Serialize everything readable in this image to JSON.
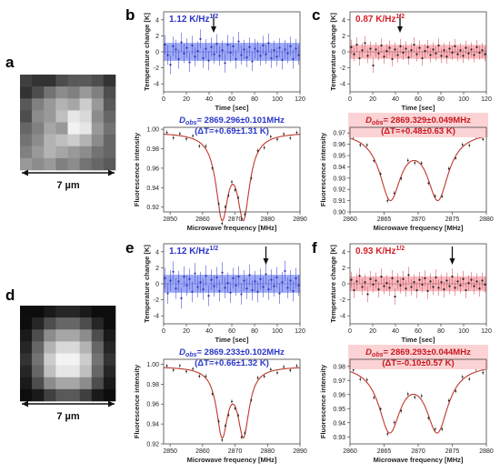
{
  "panel_labels": [
    "a",
    "b",
    "c",
    "d",
    "e",
    "f"
  ],
  "scale_label": "7 µm",
  "images": [
    {
      "name": "fluorescence-image-a",
      "grid": [
        [
          0.25,
          0.2,
          0.2,
          0.3,
          0.35,
          0.35,
          0.3,
          0.2
        ],
        [
          0.2,
          0.3,
          0.45,
          0.55,
          0.5,
          0.6,
          0.5,
          0.3
        ],
        [
          0.35,
          0.5,
          0.6,
          0.7,
          0.65,
          0.8,
          0.6,
          0.35
        ],
        [
          0.3,
          0.55,
          0.6,
          0.75,
          0.9,
          0.85,
          0.55,
          0.4
        ],
        [
          0.4,
          0.5,
          0.65,
          0.6,
          0.95,
          0.9,
          0.6,
          0.45
        ],
        [
          0.45,
          0.55,
          0.7,
          0.75,
          0.8,
          0.7,
          0.55,
          0.4
        ],
        [
          0.5,
          0.6,
          0.7,
          0.65,
          0.6,
          0.55,
          0.45,
          0.4
        ],
        [
          0.6,
          0.55,
          0.6,
          0.5,
          0.55,
          0.45,
          0.4,
          0.35
        ]
      ]
    },
    {
      "name": "fluorescence-image-d",
      "grid": [
        [
          0.05,
          0.05,
          0.1,
          0.15,
          0.15,
          0.1,
          0.05,
          0.05
        ],
        [
          0.05,
          0.15,
          0.3,
          0.4,
          0.4,
          0.3,
          0.15,
          0.05
        ],
        [
          0.1,
          0.3,
          0.55,
          0.65,
          0.65,
          0.55,
          0.3,
          0.1
        ],
        [
          0.15,
          0.4,
          0.7,
          0.85,
          0.85,
          0.7,
          0.4,
          0.15
        ],
        [
          0.2,
          0.45,
          0.8,
          0.95,
          0.95,
          0.8,
          0.45,
          0.2
        ],
        [
          0.15,
          0.4,
          0.75,
          0.9,
          0.9,
          0.75,
          0.4,
          0.15
        ],
        [
          0.1,
          0.3,
          0.55,
          0.65,
          0.65,
          0.55,
          0.3,
          0.1
        ],
        [
          0.05,
          0.1,
          0.25,
          0.35,
          0.35,
          0.25,
          0.1,
          0.05
        ]
      ]
    }
  ],
  "chart_data": [
    {
      "id": "b",
      "type": "scatter",
      "ylabel": "Temperature change [K]",
      "xlabel": "Time [sec]",
      "noise_label": "1.12 K/Hz",
      "noise_sup": "1/2",
      "xlim": [
        0,
        120
      ],
      "ylim": [
        -5,
        5
      ],
      "xticks": [
        0,
        20,
        40,
        60,
        80,
        100,
        120
      ],
      "yticks": [
        -4,
        -2,
        0,
        2,
        4
      ],
      "band": [
        -1.12,
        1.12
      ],
      "arrow_x": 44,
      "dot_color": "#2a36b8",
      "band_color": "#7f8df0",
      "err_color": "#4a58d8",
      "noise_color": "#2a36c8",
      "values": [
        0.9,
        -0.4,
        -1.6,
        0.7,
        0.3,
        -0.9,
        1.2,
        -0.2,
        0.5,
        -1.3,
        0.8,
        -0.6,
        0.1,
        1.6,
        -0.8,
        0.4,
        -1.1,
        0.6,
        -0.3,
        1.0,
        -0.5,
        0.2,
        -1.4,
        0.9,
        -0.1,
        0.7,
        -0.9,
        1.3,
        -0.4,
        0.3,
        -0.7,
        0.6,
        -1.2,
        0.4,
        0.1,
        -0.5,
        0.8,
        -0.3,
        1.1,
        -0.8,
        0.2,
        -0.6,
        0.5,
        -1.0,
        0.3,
        -0.2,
        0.7,
        -0.9,
        0.4,
        -0.4
      ],
      "err": 1.2
    },
    {
      "id": "c",
      "type": "scatter",
      "ylabel": "Temperature change [K]",
      "xlabel": "Time [sec]",
      "noise_label": "0.87 K/Hz",
      "noise_sup": "1/2",
      "xlim": [
        0,
        120
      ],
      "ylim": [
        -5,
        5
      ],
      "xticks": [
        0,
        20,
        40,
        60,
        80,
        100,
        120
      ],
      "yticks": [
        -4,
        -2,
        0,
        2,
        4
      ],
      "band": [
        -0.87,
        0.87
      ],
      "arrow_x": 44,
      "dot_color": "#222222",
      "band_color": "#f4a3a8",
      "err_color": "#e05a65",
      "noise_color": "#d81e28",
      "values": [
        0.6,
        -0.3,
        0.9,
        -0.8,
        0.2,
        1.1,
        -0.5,
        0.4,
        -1.7,
        0.3,
        -0.2,
        0.8,
        -0.6,
        0.1,
        0.5,
        -0.9,
        0.3,
        -0.4,
        0.7,
        -0.1,
        0.4,
        -0.7,
        0.2,
        0.9,
        -0.3,
        0.5,
        -0.8,
        0.1,
        0.6,
        -0.4,
        0.3,
        -0.2,
        0.8,
        -0.5,
        0.2,
        -0.6,
        0.4,
        -0.1,
        0.7,
        -0.3,
        0.2,
        -0.5,
        0.5,
        -0.2,
        0.3,
        -0.4,
        0.6,
        -0.1,
        0.2,
        -0.3
      ],
      "err": 0.9
    },
    {
      "id": "b2",
      "type": "line",
      "ylabel": "Fluorescence intensity",
      "xlabel": "Microwave frequency [MHz]",
      "dobs_label": "D",
      "dobs_sub": "obs",
      "dobs_value": "= 2869.296±0.101MHz",
      "dt_label": "(ΔT=+0.69±1.31 K)",
      "text_color": "#2a36c8",
      "box_color": "#ffffff",
      "xlim": [
        2848,
        2890
      ],
      "ylim": [
        0.915,
        1.002
      ],
      "xticks": [
        2850,
        2860,
        2870,
        2880,
        2890
      ],
      "yticks": [
        0.92,
        0.94,
        0.96,
        0.98,
        1.0
      ],
      "ytick_format": 2,
      "fit": {
        "base": 0.997,
        "dips": [
          {
            "c": 2866.0,
            "d": 0.082,
            "w": 4.6
          },
          {
            "c": 2872.6,
            "d": 0.082,
            "w": 4.6
          }
        ]
      },
      "points_x": [
        2849,
        2851,
        2853,
        2855,
        2857,
        2859,
        2861,
        2863,
        2865,
        2866,
        2867,
        2868,
        2869,
        2870,
        2871,
        2872,
        2873,
        2875,
        2877,
        2879,
        2881,
        2883,
        2885,
        2887,
        2889
      ],
      "noise": [
        0.002,
        -0.003,
        0.002,
        -0.002,
        0.003,
        -0.004,
        0.003,
        -0.002,
        0.002,
        -0.003,
        0.004,
        -0.002,
        0.003,
        -0.003,
        0.002,
        -0.002,
        0.003,
        -0.003,
        0.002,
        -0.004,
        0.003,
        -0.002,
        0.002,
        -0.003,
        0.002
      ]
    },
    {
      "id": "c2",
      "type": "line",
      "ylabel": "Fluorescence intensity",
      "xlabel": "Microwave frequency [MHz]",
      "dobs_label": "D",
      "dobs_sub": "obs",
      "dobs_value": "= 2869.329±0.049MHz",
      "dt_label": "(ΔT=+0.48±0.63 K)",
      "text_color": "#c8181f",
      "box_color": "#fbd3d5",
      "xlim": [
        2860,
        2880
      ],
      "ylim": [
        0.9,
        0.975
      ],
      "xticks": [
        2860,
        2865,
        2870,
        2875,
        2880
      ],
      "yticks": [
        0.9,
        0.91,
        0.92,
        0.93,
        0.94,
        0.95,
        0.96,
        0.97
      ],
      "ytick_format": 2,
      "fit": {
        "base": 0.972,
        "dips": [
          {
            "c": 2865.9,
            "d": 0.058,
            "w": 3.8
          },
          {
            "c": 2872.9,
            "d": 0.058,
            "w": 3.8
          }
        ]
      },
      "points_x": [
        2860.5,
        2861.5,
        2862.5,
        2863.5,
        2864.5,
        2865.5,
        2866.5,
        2867.5,
        2868.5,
        2869.5,
        2870.5,
        2871.5,
        2872.5,
        2873.5,
        2874.5,
        2875.5,
        2876.5,
        2877.5,
        2878.5,
        2879.5
      ],
      "noise": [
        0.002,
        -0.002,
        0.003,
        -0.002,
        0.002,
        -0.003,
        0.002,
        -0.002,
        0.003,
        -0.002,
        0.002,
        -0.003,
        0.002,
        -0.002,
        0.003,
        -0.002,
        0.002,
        -0.003,
        0.002,
        -0.002
      ]
    },
    {
      "id": "e",
      "type": "scatter",
      "ylabel": "Temperature change [K]",
      "xlabel": "Time [sec]",
      "noise_label": "1.12 K/Hz",
      "noise_sup": "1/2",
      "xlim": [
        0,
        120
      ],
      "ylim": [
        -5,
        5
      ],
      "xticks": [
        0,
        20,
        40,
        60,
        80,
        100,
        120
      ],
      "yticks": [
        -4,
        -2,
        0,
        2,
        4
      ],
      "band": [
        -1.12,
        1.12
      ],
      "arrow_x": 90,
      "dot_color": "#2a36b8",
      "band_color": "#7f8df0",
      "err_color": "#4a58d8",
      "noise_color": "#2a36c8",
      "values": [
        0.7,
        -1.2,
        0.4,
        1.5,
        -0.6,
        0.3,
        -1.8,
        0.9,
        -0.2,
        0.6,
        -1.0,
        1.3,
        -0.4,
        0.2,
        -0.7,
        1.0,
        -1.5,
        0.5,
        -0.3,
        0.8,
        -0.9,
        1.4,
        -0.5,
        0.1,
        -1.1,
        0.7,
        -0.2,
        0.9,
        -1.3,
        0.4,
        -0.6,
        1.1,
        -0.8,
        0.3,
        -1.0,
        0.6,
        -0.4,
        1.2,
        -0.7,
        0.5,
        -0.3,
        0.8,
        -1.2,
        0.2,
        1.6,
        -0.5,
        0.4,
        -0.9,
        0.7,
        -0.2
      ],
      "err": 1.3
    },
    {
      "id": "f",
      "type": "scatter",
      "ylabel": "Temperature change [K]",
      "xlabel": "Time [sec]",
      "noise_label": "0.93 K/Hz",
      "noise_sup": "1/2",
      "xlim": [
        0,
        120
      ],
      "ylim": [
        -5,
        5
      ],
      "xticks": [
        0,
        20,
        40,
        60,
        80,
        100,
        120
      ],
      "yticks": [
        -4,
        -2,
        0,
        2,
        4
      ],
      "band": [
        -0.93,
        0.93
      ],
      "arrow_x": 90,
      "dot_color": "#222222",
      "band_color": "#f4a3a8",
      "err_color": "#e05a65",
      "noise_color": "#d81e28",
      "values": [
        0.5,
        -0.8,
        0.3,
        1.0,
        -0.4,
        0.2,
        -1.3,
        0.6,
        -0.1,
        0.4,
        -0.7,
        0.9,
        -0.3,
        0.1,
        -0.5,
        0.7,
        -1.6,
        0.3,
        -0.2,
        0.6,
        -0.6,
        1.1,
        -0.4,
        0.2,
        -0.8,
        0.5,
        -0.1,
        0.7,
        -0.9,
        0.3,
        -0.4,
        0.8,
        -0.5,
        0.2,
        -0.7,
        0.4,
        -0.3,
        0.9,
        -0.5,
        0.3,
        -0.2,
        0.6,
        -0.8,
        0.1,
        0.5,
        -0.3,
        0.3,
        -0.6,
        0.4,
        -0.1
      ],
      "err": 1.0
    },
    {
      "id": "e2",
      "type": "line",
      "ylabel": "Fluorescence intensity",
      "xlabel": "Microwave frequency [MHz]",
      "dobs_label": "D",
      "dobs_sub": "obs",
      "dobs_value": "= 2869.233±0.102MHz",
      "dt_label": "(ΔT=+0.66±1.32 K)",
      "text_color": "#2a36c8",
      "box_color": "#ffffff",
      "xlim": [
        2848,
        2890
      ],
      "ylim": [
        0.92,
        1.005
      ],
      "xticks": [
        2850,
        2860,
        2870,
        2880,
        2890
      ],
      "yticks": [
        0.92,
        0.94,
        0.96,
        0.98,
        1.0
      ],
      "ytick_format": 2,
      "fit": {
        "base": 0.998,
        "dips": [
          {
            "c": 2866.0,
            "d": 0.066,
            "w": 4.2
          },
          {
            "c": 2872.6,
            "d": 0.066,
            "w": 4.2
          }
        ]
      },
      "points_x": [
        2849,
        2851,
        2853,
        2855,
        2857,
        2859,
        2861,
        2863,
        2865,
        2866,
        2867,
        2868,
        2869,
        2870,
        2871,
        2872,
        2873,
        2875,
        2877,
        2879,
        2881,
        2883,
        2885,
        2887,
        2889
      ],
      "noise": [
        0.002,
        -0.002,
        0.003,
        -0.002,
        0.002,
        -0.003,
        0.002,
        -0.003,
        0.003,
        -0.002,
        0.002,
        -0.003,
        0.003,
        -0.002,
        0.002,
        -0.003,
        0.002,
        -0.002,
        0.003,
        -0.002,
        0.002,
        -0.003,
        0.002,
        -0.002,
        0.002
      ]
    },
    {
      "id": "f2",
      "type": "line",
      "ylabel": "Fluorescence intensity",
      "xlabel": "Microwave frequency [MHz]",
      "dobs_label": "D",
      "dobs_sub": "obs",
      "dobs_value": "= 2869.293±0.044MHz",
      "dt_label": "(ΔT=-0.10±0.57 K)",
      "text_color": "#c8181f",
      "box_color": "#fbd3d5",
      "xlim": [
        2860,
        2880
      ],
      "ylim": [
        0.925,
        0.985
      ],
      "xticks": [
        2860,
        2865,
        2870,
        2875,
        2880
      ],
      "yticks": [
        0.93,
        0.94,
        0.95,
        0.96,
        0.97,
        0.98
      ],
      "ytick_format": 2,
      "fit": {
        "base": 0.982,
        "dips": [
          {
            "c": 2865.8,
            "d": 0.046,
            "w": 3.9
          },
          {
            "c": 2872.8,
            "d": 0.046,
            "w": 3.9
          }
        ]
      },
      "points_x": [
        2860.5,
        2861.5,
        2862.5,
        2863.5,
        2864.5,
        2865.5,
        2866.5,
        2867.5,
        2868.5,
        2869.5,
        2870.5,
        2871.5,
        2872.5,
        2873.5,
        2874.5,
        2875.5,
        2876.5,
        2877.5,
        2878.5,
        2879.5
      ],
      "noise": [
        0.002,
        -0.002,
        0.002,
        -0.003,
        0.002,
        -0.002,
        0.003,
        -0.002,
        0.002,
        -0.002,
        0.003,
        -0.002,
        0.002,
        -0.003,
        0.002,
        -0.002,
        0.002,
        -0.003,
        0.002,
        -0.002
      ]
    }
  ]
}
